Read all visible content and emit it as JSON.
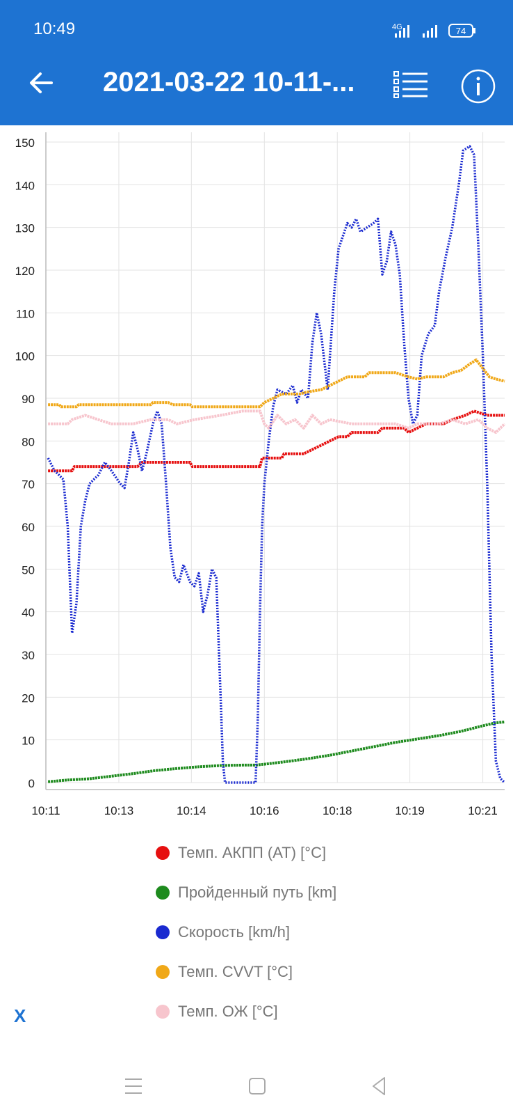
{
  "status": {
    "time": "10:49",
    "battery": "74",
    "network": "4G"
  },
  "toolbar": {
    "title": "2021-03-22 10-11-..."
  },
  "colors": {
    "appbar": "#1E73D2",
    "at_temp": "#E61010",
    "distance": "#1E8B1E",
    "speed": "#1A2AD0",
    "cvvt": "#F0A818",
    "coolant": "#F7C5CD"
  },
  "close_label": "X",
  "chart_data": {
    "type": "line",
    "ylim": [
      0,
      150
    ],
    "yticks": [
      0,
      10,
      20,
      30,
      40,
      50,
      60,
      70,
      80,
      90,
      100,
      110,
      120,
      130,
      140,
      150
    ],
    "xlim": [
      0,
      10.5
    ],
    "xtick_positions": [
      0,
      1.67,
      3.33,
      5.0,
      6.67,
      8.33,
      10.0
    ],
    "xtick_labels": [
      "10:11",
      "10:13",
      "10:14",
      "10:16",
      "10:18",
      "10:19",
      "10:21"
    ],
    "legend_position": "bottom",
    "grid": true,
    "series": [
      {
        "name": "Темп. АКПП (AT) [°C]",
        "color": "#E61010",
        "style": "thick",
        "points": [
          [
            0.05,
            73
          ],
          [
            0.6,
            73
          ],
          [
            0.65,
            74
          ],
          [
            1.5,
            74
          ],
          [
            2.1,
            74
          ],
          [
            2.2,
            75
          ],
          [
            3.3,
            75
          ],
          [
            3.35,
            74
          ],
          [
            4.9,
            74
          ],
          [
            4.95,
            76
          ],
          [
            5.4,
            76
          ],
          [
            5.45,
            77
          ],
          [
            5.9,
            77
          ],
          [
            6.1,
            78
          ],
          [
            6.3,
            79
          ],
          [
            6.5,
            80
          ],
          [
            6.7,
            81
          ],
          [
            6.9,
            81
          ],
          [
            7.0,
            82
          ],
          [
            7.6,
            82
          ],
          [
            7.7,
            83
          ],
          [
            8.2,
            83
          ],
          [
            8.3,
            82
          ],
          [
            8.5,
            83
          ],
          [
            8.7,
            84
          ],
          [
            9.1,
            84
          ],
          [
            9.3,
            85
          ],
          [
            9.6,
            86
          ],
          [
            9.8,
            87
          ],
          [
            10.1,
            86
          ],
          [
            10.5,
            86
          ]
        ]
      },
      {
        "name": "Пройденный путь [km]",
        "color": "#1E8B1E",
        "style": "thick",
        "points": [
          [
            0.05,
            0.2
          ],
          [
            0.5,
            0.6
          ],
          [
            1,
            0.9
          ],
          [
            1.5,
            1.5
          ],
          [
            2,
            2.1
          ],
          [
            2.5,
            2.8
          ],
          [
            3,
            3.3
          ],
          [
            3.5,
            3.7
          ],
          [
            4,
            4.0
          ],
          [
            4.5,
            4.1
          ],
          [
            4.8,
            4.1
          ],
          [
            5,
            4.3
          ],
          [
            5.5,
            4.9
          ],
          [
            6,
            5.6
          ],
          [
            6.5,
            6.4
          ],
          [
            7,
            7.4
          ],
          [
            7.5,
            8.4
          ],
          [
            8,
            9.4
          ],
          [
            8.5,
            10.2
          ],
          [
            9,
            11.0
          ],
          [
            9.5,
            12.0
          ],
          [
            10,
            13.3
          ],
          [
            10.3,
            14.0
          ],
          [
            10.5,
            14.2
          ]
        ]
      },
      {
        "name": "Скорость [km/h]",
        "color": "#1A2AD0",
        "style": "dotted",
        "points": [
          [
            0.05,
            76
          ],
          [
            0.2,
            73
          ],
          [
            0.4,
            71
          ],
          [
            0.5,
            60
          ],
          [
            0.6,
            35
          ],
          [
            0.7,
            42
          ],
          [
            0.8,
            60
          ],
          [
            0.9,
            66
          ],
          [
            1.0,
            70
          ],
          [
            1.2,
            72
          ],
          [
            1.35,
            75
          ],
          [
            1.5,
            73
          ],
          [
            1.7,
            70
          ],
          [
            1.8,
            69
          ],
          [
            1.9,
            75
          ],
          [
            2.0,
            82
          ],
          [
            2.1,
            78
          ],
          [
            2.2,
            73
          ],
          [
            2.3,
            77
          ],
          [
            2.45,
            84
          ],
          [
            2.55,
            87
          ],
          [
            2.65,
            84
          ],
          [
            2.75,
            70
          ],
          [
            2.85,
            55
          ],
          [
            2.95,
            48
          ],
          [
            3.05,
            47
          ],
          [
            3.15,
            51
          ],
          [
            3.3,
            47
          ],
          [
            3.4,
            46
          ],
          [
            3.5,
            49
          ],
          [
            3.6,
            40
          ],
          [
            3.7,
            44
          ],
          [
            3.8,
            50
          ],
          [
            3.9,
            48
          ],
          [
            4.0,
            20
          ],
          [
            4.05,
            5
          ],
          [
            4.1,
            0
          ],
          [
            4.8,
            0
          ],
          [
            4.85,
            15
          ],
          [
            4.9,
            40
          ],
          [
            4.95,
            60
          ],
          [
            5.0,
            70
          ],
          [
            5.1,
            80
          ],
          [
            5.2,
            88
          ],
          [
            5.3,
            92
          ],
          [
            5.5,
            91
          ],
          [
            5.65,
            93
          ],
          [
            5.75,
            89
          ],
          [
            5.85,
            92
          ],
          [
            6.0,
            90
          ],
          [
            6.1,
            103
          ],
          [
            6.2,
            110
          ],
          [
            6.3,
            105
          ],
          [
            6.45,
            92
          ],
          [
            6.6,
            115
          ],
          [
            6.7,
            125
          ],
          [
            6.8,
            128
          ],
          [
            6.9,
            131
          ],
          [
            7.0,
            130
          ],
          [
            7.1,
            132
          ],
          [
            7.2,
            129
          ],
          [
            7.35,
            130
          ],
          [
            7.5,
            131
          ],
          [
            7.6,
            132
          ],
          [
            7.7,
            119
          ],
          [
            7.8,
            122
          ],
          [
            7.9,
            129
          ],
          [
            8.0,
            126
          ],
          [
            8.1,
            119
          ],
          [
            8.2,
            103
          ],
          [
            8.3,
            90
          ],
          [
            8.4,
            84
          ],
          [
            8.5,
            86
          ],
          [
            8.6,
            100
          ],
          [
            8.75,
            105
          ],
          [
            8.9,
            107
          ],
          [
            9.0,
            115
          ],
          [
            9.15,
            123
          ],
          [
            9.3,
            130
          ],
          [
            9.45,
            140
          ],
          [
            9.55,
            148
          ],
          [
            9.7,
            149
          ],
          [
            9.8,
            147
          ],
          [
            9.9,
            125
          ],
          [
            10.0,
            100
          ],
          [
            10.1,
            70
          ],
          [
            10.2,
            30
          ],
          [
            10.3,
            5
          ],
          [
            10.4,
            1
          ],
          [
            10.5,
            0
          ]
        ]
      },
      {
        "name": "Темп. CVVT [°C]",
        "color": "#F0A818",
        "style": "thick",
        "points": [
          [
            0.05,
            88.5
          ],
          [
            0.3,
            88.5
          ],
          [
            0.35,
            88
          ],
          [
            0.7,
            88
          ],
          [
            0.75,
            88.5
          ],
          [
            2.4,
            88.5
          ],
          [
            2.45,
            89
          ],
          [
            2.8,
            89
          ],
          [
            2.9,
            88.5
          ],
          [
            3.3,
            88.5
          ],
          [
            3.35,
            88
          ],
          [
            4.9,
            88
          ],
          [
            5.0,
            89
          ],
          [
            5.2,
            90
          ],
          [
            5.4,
            91
          ],
          [
            5.8,
            91
          ],
          [
            6.0,
            91.5
          ],
          [
            6.3,
            92
          ],
          [
            6.5,
            93
          ],
          [
            6.7,
            94
          ],
          [
            6.9,
            95
          ],
          [
            7.3,
            95
          ],
          [
            7.4,
            96
          ],
          [
            8.0,
            96
          ],
          [
            8.3,
            95
          ],
          [
            8.5,
            94.5
          ],
          [
            8.7,
            95
          ],
          [
            9.1,
            95
          ],
          [
            9.3,
            96
          ],
          [
            9.5,
            96.5
          ],
          [
            9.7,
            98
          ],
          [
            9.85,
            99
          ],
          [
            10.0,
            97
          ],
          [
            10.15,
            95
          ],
          [
            10.3,
            94.5
          ],
          [
            10.5,
            94
          ]
        ]
      },
      {
        "name": "Темп. ОЖ [°C]",
        "color": "#F7C5CD",
        "style": "thick",
        "points": [
          [
            0.05,
            84
          ],
          [
            0.5,
            84
          ],
          [
            0.6,
            85
          ],
          [
            0.9,
            86
          ],
          [
            1.2,
            85
          ],
          [
            1.5,
            84
          ],
          [
            2.0,
            84
          ],
          [
            2.4,
            85
          ],
          [
            2.8,
            85
          ],
          [
            3.0,
            84
          ],
          [
            3.4,
            85
          ],
          [
            4.0,
            86
          ],
          [
            4.5,
            87
          ],
          [
            4.9,
            87
          ],
          [
            5.0,
            84
          ],
          [
            5.1,
            83
          ],
          [
            5.3,
            86
          ],
          [
            5.5,
            84
          ],
          [
            5.7,
            85
          ],
          [
            5.9,
            83
          ],
          [
            6.1,
            86
          ],
          [
            6.3,
            84
          ],
          [
            6.5,
            85
          ],
          [
            7.0,
            84
          ],
          [
            7.5,
            84
          ],
          [
            8.0,
            84
          ],
          [
            8.3,
            83
          ],
          [
            8.5,
            84
          ],
          [
            8.8,
            84
          ],
          [
            9.0,
            84
          ],
          [
            9.3,
            85
          ],
          [
            9.6,
            84
          ],
          [
            9.9,
            85
          ],
          [
            10.1,
            83
          ],
          [
            10.3,
            82
          ],
          [
            10.5,
            84
          ]
        ]
      }
    ]
  }
}
